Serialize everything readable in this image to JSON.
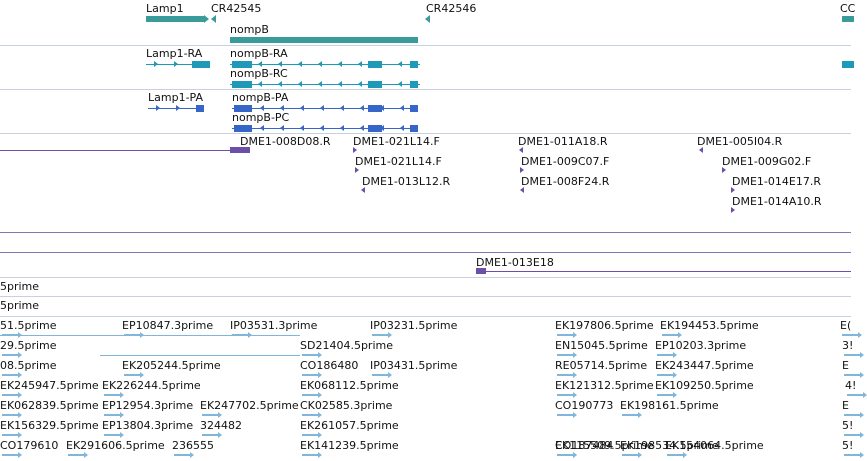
{
  "colors": {
    "gene": "#3a9b9b",
    "transcript_top": "#1e9ab8",
    "transcript_bottom": "#3566c8",
    "cdna": "#6b4fa8",
    "est": "#7fb6d9",
    "divider": "#c9d2dc",
    "divider_dark": "#8474b0"
  },
  "genes": [
    {
      "id": "gene-lamp1",
      "label": "Lamp1"
    },
    {
      "id": "gene-cr42545",
      "label": "CR42545"
    },
    {
      "id": "gene-cr42546",
      "label": "CR42546"
    },
    {
      "id": "gene-co-clipped",
      "label": "CC"
    },
    {
      "id": "gene-nompb",
      "label": "nompB"
    }
  ],
  "transcripts_r": [
    {
      "id": "lamp1-ra",
      "label": "Lamp1-RA"
    },
    {
      "id": "nompb-ra",
      "label": "nompB-RA"
    },
    {
      "id": "nompb-rc",
      "label": "nompB-RC"
    }
  ],
  "transcripts_p": [
    {
      "id": "lamp1-pa",
      "label": "Lamp1-PA"
    },
    {
      "id": "nompb-pa",
      "label": "nompB-PA"
    },
    {
      "id": "nompb-pc",
      "label": "nompB-PC"
    }
  ],
  "cdna_clones": [
    {
      "id": "dme1-008d08",
      "label": "DME1-008D08.R"
    },
    {
      "id": "dme1-021l14-a",
      "label": "DME1-021L14.F"
    },
    {
      "id": "dme1-021l14-b",
      "label": "DME1-021L14.F"
    },
    {
      "id": "dme1-013l12",
      "label": "DME1-013L12.R"
    },
    {
      "id": "dme1-011a18",
      "label": "DME1-011A18.R"
    },
    {
      "id": "dme1-009c07",
      "label": "DME1-009C07.F"
    },
    {
      "id": "dme1-008f24",
      "label": "DME1-008F24.R"
    },
    {
      "id": "dme1-005i04",
      "label": "DME1-005I04.R"
    },
    {
      "id": "dme1-009g02",
      "label": "DME1-009G02.F"
    },
    {
      "id": "dme1-014e17",
      "label": "DME1-014E17.R"
    },
    {
      "id": "dme1-014a10",
      "label": "DME1-014A10.R"
    },
    {
      "id": "dme1-013e18",
      "label": "DME1-013E18"
    }
  ],
  "est_rows": [
    [
      "5prime"
    ],
    [
      "5prime"
    ],
    [
      "51.5prime",
      "EP10847.3prime",
      "IP03531.3prime",
      "IP03231.5prime",
      "EK197806.5prime",
      "EK194453.5prime",
      "E("
    ],
    [
      "29.5prime",
      "SD21404.5prime",
      "EN15045.5prime",
      "EP10203.3prime",
      "3!"
    ],
    [
      "08.5prime",
      "EK205244.5prime",
      "CO186480",
      "IP03431.5prime",
      "RE05714.5prime",
      "EK243447.5prime",
      "E"
    ],
    [
      "EK245947.5prime",
      "EK226244.5prime",
      "EK068112.5prime",
      "EK121312.5prime",
      "EK109250.5prime",
      "4!"
    ],
    [
      "EK062839.5prime",
      "EP12954.3prime",
      "EK247702.5prime",
      "CK02585.3prime",
      "CO190773",
      "EK198161.5prime",
      "E"
    ],
    [
      "EK156329.5prime",
      "EP13804.3prime",
      "324482",
      "EK261057.5prime",
      "5!"
    ],
    [
      "CO179610",
      "EK291606.5prime",
      "236555",
      "EK141239.5prime",
      "CO187484",
      "EK198534.5prime",
      "5!"
    ],
    [
      "EK115509.5prime",
      "EK154064.5prime"
    ]
  ]
}
